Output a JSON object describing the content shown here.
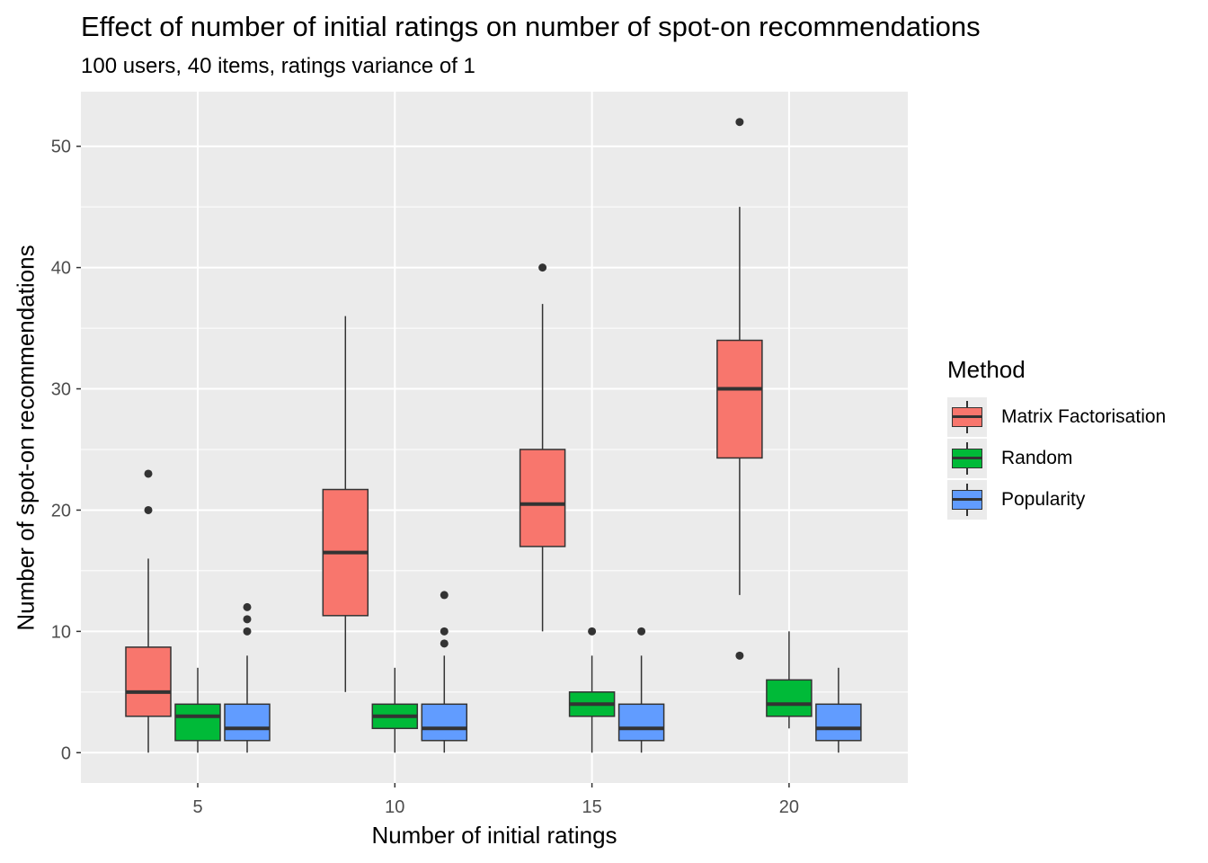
{
  "chart_data": {
    "type": "boxplot",
    "title": "Effect of number of initial ratings on number of spot-on recommendations",
    "subtitle": "100 users, 40 items, ratings variance of 1",
    "xlabel": "Number of initial ratings",
    "ylabel": "Number of spot-on recommendations",
    "categories": [
      5,
      10,
      15,
      20
    ],
    "x_ticks": [
      "5",
      "10",
      "15",
      "20"
    ],
    "y_ticks": [
      0,
      10,
      20,
      30,
      40,
      50
    ],
    "ylim": [
      -2.5,
      54.5
    ],
    "grid": true,
    "legend": {
      "title": "Method",
      "placement": "right"
    },
    "series": [
      {
        "name": "Matrix Factorisation",
        "color": "#F8766D",
        "boxes": [
          {
            "x": 5,
            "min": 0,
            "q1": 3,
            "median": 5,
            "q3": 8.7,
            "max": 16,
            "outliers": [
              20,
              23
            ]
          },
          {
            "x": 10,
            "min": 5,
            "q1": 11.3,
            "median": 16.5,
            "q3": 21.7,
            "max": 36,
            "outliers": []
          },
          {
            "x": 15,
            "min": 10,
            "q1": 17,
            "median": 20.5,
            "q3": 25,
            "max": 37,
            "outliers": [
              40
            ]
          },
          {
            "x": 20,
            "min": 13,
            "q1": 24.3,
            "median": 30,
            "q3": 34,
            "max": 45,
            "outliers": [
              8,
              52
            ]
          }
        ]
      },
      {
        "name": "Random",
        "color": "#00BA38",
        "boxes": [
          {
            "x": 5,
            "min": 0,
            "q1": 1,
            "median": 3,
            "q3": 4,
            "max": 7,
            "outliers": []
          },
          {
            "x": 10,
            "min": 0,
            "q1": 2,
            "median": 3,
            "q3": 4,
            "max": 7,
            "outliers": []
          },
          {
            "x": 15,
            "min": 0,
            "q1": 3,
            "median": 4,
            "q3": 5,
            "max": 8,
            "outliers": [
              10
            ]
          },
          {
            "x": 20,
            "min": 2,
            "q1": 3,
            "median": 4,
            "q3": 6,
            "max": 10,
            "outliers": []
          }
        ]
      },
      {
        "name": "Popularity",
        "color": "#619CFF",
        "boxes": [
          {
            "x": 5,
            "min": 0,
            "q1": 1,
            "median": 2,
            "q3": 4,
            "max": 8,
            "outliers": [
              10,
              11,
              12
            ]
          },
          {
            "x": 10,
            "min": 0,
            "q1": 1,
            "median": 2,
            "q3": 4,
            "max": 8,
            "outliers": [
              9,
              10,
              13
            ]
          },
          {
            "x": 15,
            "min": 0,
            "q1": 1,
            "median": 2,
            "q3": 4,
            "max": 8,
            "outliers": [
              10
            ]
          },
          {
            "x": 20,
            "min": 0,
            "q1": 1,
            "median": 2,
            "q3": 4,
            "max": 7,
            "outliers": []
          }
        ]
      }
    ]
  }
}
